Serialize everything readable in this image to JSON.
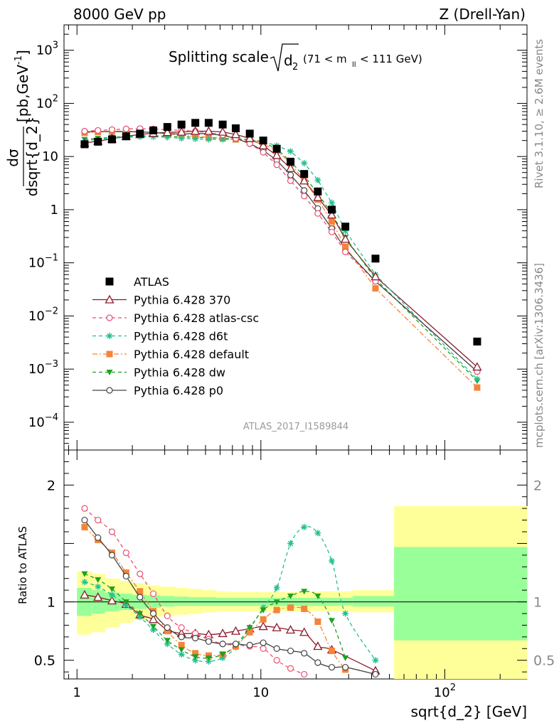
{
  "header": {
    "energy_label": "8000 GeV pp",
    "process_label": "Z (Drell-Yan)",
    "rivet_label": "Rivet 3.1.10, ≥ 2.6M events",
    "site_label": "mcplots.cern.ch [arXiv:1306.3436]",
    "analysis_label": "ATLAS_2017_I1589844"
  },
  "colors": {
    "atlas": "#000000",
    "p370": "#8b1a2b",
    "atlas_csc": "#e8506e",
    "d6t": "#20c090",
    "default": "#f5843a",
    "dw": "#20a020",
    "p0": "#444444",
    "band_inner": "#99ff99",
    "band_outer": "#ffff99"
  },
  "chart_data": [
    {
      "type": "scatter",
      "name": "main",
      "title_main": "Splitting scale",
      "title_sub": "2",
      "title_range_pre": "(71 < m",
      "title_range_sub": "ll",
      "title_range_post": "< 111 GeV)",
      "ylabel_num": "dσ",
      "ylabel_den": "dsqrt{d_2}",
      "ylabel_units": "[pb,GeV",
      "ylabel_units_sup": "-1",
      "ylabel_units_close": "]",
      "xscale": "log",
      "yscale": "log",
      "xlim": [
        0.85,
        280
      ],
      "ylim": [
        3e-05,
        3000
      ],
      "yticks": [
        {
          "v": 0.0001,
          "base": "10",
          "exp": "−4"
        },
        {
          "v": 0.001,
          "base": "10",
          "exp": "−3"
        },
        {
          "v": 0.01,
          "base": "10",
          "exp": "−2"
        },
        {
          "v": 0.1,
          "base": "10",
          "exp": "−1"
        },
        {
          "v": 1,
          "base": "1",
          "exp": ""
        },
        {
          "v": 10,
          "base": "10",
          "exp": ""
        },
        {
          "v": 100,
          "base": "10",
          "exp": "2"
        },
        {
          "v": 1000,
          "base": "10",
          "exp": "3"
        }
      ],
      "legend_position": "left",
      "x": [
        1.1,
        1.3,
        1.55,
        1.85,
        2.2,
        2.6,
        3.1,
        3.7,
        4.4,
        5.2,
        6.2,
        7.3,
        8.7,
        10.3,
        12.2,
        14.5,
        17.2,
        20.4,
        24.3,
        28.8,
        42,
        150
      ],
      "series": [
        {
          "name": "ATLAS",
          "key": "atlas",
          "marker": "square",
          "dash": "none",
          "y": [
            17,
            19,
            21,
            24,
            27,
            31,
            36,
            40,
            43,
            43,
            40,
            34,
            27,
            20,
            14,
            8,
            4.7,
            2.2,
            1.0,
            0.48,
            0.12,
            0.0033
          ]
        },
        {
          "name": "Pythia 6.428 370",
          "key": "p370",
          "marker": "triangle-open",
          "dash": "solid",
          "y": [
            18,
            19.5,
            21.5,
            24,
            26,
            27.5,
            28.5,
            29,
            30,
            30,
            29,
            26,
            22,
            16,
            10.5,
            6,
            3.5,
            1.7,
            0.8,
            0.28,
            0.055,
            0.0011
          ]
        },
        {
          "name": "Pythia 6.428 atlas-csc",
          "key": "atlas_csc",
          "marker": "circle-open",
          "dash": "dashed",
          "y": [
            30,
            31,
            32,
            33,
            33.5,
            33,
            32,
            31,
            30,
            28,
            25.5,
            22,
            17.5,
            12,
            7,
            3.5,
            1.8,
            0.85,
            0.38,
            0.16,
            0.045,
            0.0009
          ]
        },
        {
          "name": "Pythia 6.428 d6t",
          "key": "d6t",
          "marker": "star",
          "dash": "dashed",
          "y": [
            20,
            21,
            22,
            23,
            23.5,
            23.5,
            23,
            22,
            21.5,
            21,
            21,
            21,
            21,
            19,
            16,
            12.5,
            7.5,
            3.6,
            1.35,
            0.4,
            0.06,
            0.00065
          ]
        },
        {
          "name": "Pythia 6.428 default",
          "key": "default",
          "marker": "square",
          "dash": "dashdot",
          "y": [
            28,
            29,
            30,
            30,
            29.5,
            28.5,
            27,
            25,
            24,
            23,
            22,
            21,
            20,
            17,
            13,
            7.5,
            3.5,
            1.55,
            0.6,
            0.2,
            0.033,
            0.00045
          ]
        },
        {
          "name": "Pythia 6.428 dw",
          "key": "dw",
          "marker": "triangle-down",
          "dash": "dashed",
          "y": [
            21,
            22,
            23,
            24,
            24.5,
            24.5,
            24,
            23.5,
            23,
            22.5,
            22,
            21.5,
            21,
            18.5,
            14,
            8,
            4.3,
            2.0,
            0.85,
            0.3,
            0.05,
            0.0006
          ]
        },
        {
          "name": "Pythia 6.428 p0",
          "key": "p0",
          "marker": "circle-open",
          "dash": "solid",
          "y": [
            29,
            29.5,
            29.5,
            29.5,
            29,
            28.5,
            27,
            26.5,
            27,
            27,
            25,
            22,
            17.5,
            13,
            8.5,
            4.5,
            2.3,
            1.05,
            0.44,
            0.18,
            0.045,
            0.0009
          ]
        }
      ]
    },
    {
      "type": "line",
      "name": "ratio",
      "ylabel": "Ratio to ATLAS",
      "xlabel": "sqrt{d_2} [GeV]",
      "xscale": "log",
      "xlim": [
        0.85,
        280
      ],
      "ylim": [
        0.34,
        2.3
      ],
      "yticks": [
        0.5,
        1,
        2
      ],
      "ytick_labels": [
        "0.5",
        "1",
        "2"
      ],
      "xticks": [
        {
          "v": 1,
          "base": "1",
          "exp": ""
        },
        {
          "v": 10,
          "base": "10",
          "exp": ""
        },
        {
          "v": 100,
          "base": "10",
          "exp": "2"
        }
      ],
      "reference": 1,
      "band_edges": [
        1.0,
        1.2,
        1.42,
        1.7,
        2.0,
        2.4,
        2.85,
        3.4,
        4.05,
        4.8,
        5.7,
        6.75,
        8.0,
        9.5,
        11.2,
        13.3,
        15.8,
        18.8,
        22.3,
        26.5,
        31.5,
        53,
        280
      ],
      "band_inner_lo": [
        0.88,
        0.9,
        0.92,
        0.93,
        0.94,
        0.95,
        0.96,
        0.965,
        0.965,
        0.965,
        0.965,
        0.965,
        0.965,
        0.965,
        0.965,
        0.965,
        0.965,
        0.965,
        0.965,
        0.97,
        0.96,
        0.67
      ],
      "band_inner_hi": [
        1.12,
        1.1,
        1.08,
        1.07,
        1.06,
        1.055,
        1.05,
        1.045,
        1.04,
        1.04,
        1.035,
        1.035,
        1.035,
        1.035,
        1.035,
        1.035,
        1.035,
        1.035,
        1.035,
        1.035,
        1.05,
        1.47
      ],
      "band_outer_lo": [
        0.72,
        0.74,
        0.78,
        0.82,
        0.85,
        0.87,
        0.88,
        0.89,
        0.9,
        0.91,
        0.92,
        0.92,
        0.92,
        0.92,
        0.92,
        0.92,
        0.92,
        0.92,
        0.92,
        0.92,
        0.91,
        0.34
      ],
      "band_outer_hi": [
        1.26,
        1.24,
        1.2,
        1.18,
        1.16,
        1.14,
        1.13,
        1.12,
        1.11,
        1.1,
        1.09,
        1.085,
        1.085,
        1.085,
        1.085,
        1.085,
        1.085,
        1.09,
        1.09,
        1.09,
        1.1,
        1.82
      ],
      "x": [
        1.1,
        1.3,
        1.55,
        1.85,
        2.2,
        2.6,
        3.1,
        3.7,
        4.4,
        5.2,
        6.2,
        7.3,
        8.7,
        10.3,
        12.2,
        14.5,
        17.2,
        20.4,
        24.3,
        28.8,
        42
      ],
      "series": [
        {
          "key": "p370",
          "marker": "triangle-open",
          "dash": "solid",
          "y": [
            1.06,
            1.04,
            1.01,
            0.98,
            0.89,
            0.85,
            0.76,
            0.73,
            0.73,
            0.72,
            0.73,
            0.75,
            0.77,
            0.79,
            0.78,
            0.76,
            0.74,
            0.62,
            0.59,
            null,
            0.41
          ]
        },
        {
          "key": "atlas_csc",
          "marker": "circle-open",
          "dash": "dashed",
          "y": [
            1.8,
            1.7,
            1.6,
            1.42,
            1.24,
            1.07,
            0.88,
            0.78,
            0.73,
            0.68,
            0.64,
            0.63,
            0.62,
            0.6,
            0.5,
            0.43,
            0.38,
            null,
            null,
            null,
            null
          ]
        },
        {
          "key": "d6t",
          "marker": "star",
          "dash": "dashed",
          "y": [
            1.17,
            1.13,
            1.06,
            0.97,
            0.87,
            0.76,
            0.64,
            0.55,
            0.5,
            0.49,
            0.52,
            0.61,
            0.77,
            0.95,
            1.12,
            1.5,
            1.64,
            1.59,
            1.35,
            0.9,
            0.5
          ]
        },
        {
          "key": "default",
          "marker": "square",
          "dash": "dashdot",
          "y": [
            1.64,
            1.53,
            1.42,
            1.25,
            1.09,
            0.92,
            0.75,
            0.63,
            0.56,
            0.54,
            0.55,
            0.62,
            0.74,
            0.85,
            0.93,
            0.95,
            0.94,
            0.83,
            0.58,
            0.42,
            null
          ]
        },
        {
          "key": "dw",
          "marker": "triangle-down",
          "dash": "dashed",
          "y": [
            1.24,
            1.19,
            1.11,
            1.0,
            0.9,
            0.79,
            0.67,
            0.59,
            0.53,
            0.52,
            0.55,
            0.63,
            0.78,
            0.93,
            1.0,
            1.05,
            1.09,
            1.05,
            0.84,
            0.52,
            null
          ]
        },
        {
          "key": "p0",
          "marker": "circle-open",
          "dash": "solid",
          "y": [
            1.7,
            1.55,
            1.4,
            1.22,
            1.04,
            0.9,
            0.78,
            0.7,
            0.69,
            0.66,
            0.64,
            0.64,
            0.63,
            0.65,
            0.6,
            0.58,
            0.56,
            0.48,
            0.44,
            0.44,
            0.38
          ]
        }
      ]
    }
  ]
}
